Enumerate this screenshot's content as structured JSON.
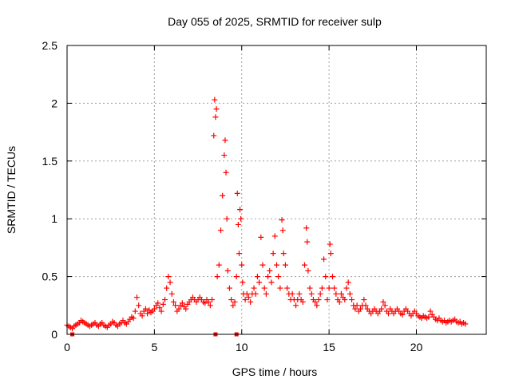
{
  "chart_data": {
    "type": "scatter",
    "title": "Day 055 of 2025, SRMTID for receiver sulp",
    "xlabel": "GPS time / hours",
    "ylabel": "SRMTID / TECUs",
    "xlim": [
      0,
      24
    ],
    "ylim": [
      0,
      2.5
    ],
    "x_ticks": [
      0,
      5,
      10,
      15,
      20
    ],
    "x_tick_labels": [
      "0",
      "5",
      "10",
      "15",
      "20"
    ],
    "y_ticks": [
      0,
      0.5,
      1,
      1.5,
      2,
      2.5
    ],
    "y_tick_labels": [
      "0",
      "0.5",
      "1",
      "1.5",
      "2",
      "2.5"
    ],
    "grid": true,
    "marker": "+",
    "color": "#ff0000",
    "zero_markers_x": [
      0.3,
      8.5,
      9.7
    ],
    "series": [
      {
        "name": "SRMTID",
        "points": [
          [
            0.0,
            0.08
          ],
          [
            0.1,
            0.07
          ],
          [
            0.2,
            0.06
          ],
          [
            0.3,
            0.05
          ],
          [
            0.4,
            0.07
          ],
          [
            0.5,
            0.08
          ],
          [
            0.6,
            0.09
          ],
          [
            0.7,
            0.1
          ],
          [
            0.8,
            0.12
          ],
          [
            0.9,
            0.11
          ],
          [
            1.0,
            0.1
          ],
          [
            1.1,
            0.09
          ],
          [
            1.2,
            0.08
          ],
          [
            1.3,
            0.07
          ],
          [
            1.4,
            0.08
          ],
          [
            1.5,
            0.09
          ],
          [
            1.6,
            0.1
          ],
          [
            1.7,
            0.08
          ],
          [
            1.8,
            0.07
          ],
          [
            1.9,
            0.09
          ],
          [
            2.0,
            0.1
          ],
          [
            2.1,
            0.08
          ],
          [
            2.2,
            0.07
          ],
          [
            2.3,
            0.06
          ],
          [
            2.4,
            0.08
          ],
          [
            2.5,
            0.09
          ],
          [
            2.6,
            0.11
          ],
          [
            2.7,
            0.1
          ],
          [
            2.8,
            0.08
          ],
          [
            2.9,
            0.07
          ],
          [
            3.0,
            0.09
          ],
          [
            3.1,
            0.1
          ],
          [
            3.2,
            0.12
          ],
          [
            3.3,
            0.1
          ],
          [
            3.4,
            0.09
          ],
          [
            3.5,
            0.11
          ],
          [
            3.6,
            0.13
          ],
          [
            3.7,
            0.15
          ],
          [
            3.8,
            0.14
          ],
          [
            3.9,
            0.2
          ],
          [
            4.0,
            0.32
          ],
          [
            4.1,
            0.25
          ],
          [
            4.2,
            0.18
          ],
          [
            4.3,
            0.16
          ],
          [
            4.4,
            0.2
          ],
          [
            4.5,
            0.22
          ],
          [
            4.6,
            0.18
          ],
          [
            4.7,
            0.21
          ],
          [
            4.8,
            0.19
          ],
          [
            4.9,
            0.2
          ],
          [
            5.0,
            0.22
          ],
          [
            5.1,
            0.25
          ],
          [
            5.2,
            0.27
          ],
          [
            5.3,
            0.23
          ],
          [
            5.4,
            0.2
          ],
          [
            5.5,
            0.26
          ],
          [
            5.6,
            0.3
          ],
          [
            5.7,
            0.4
          ],
          [
            5.8,
            0.5
          ],
          [
            5.9,
            0.45
          ],
          [
            6.0,
            0.35
          ],
          [
            6.1,
            0.28
          ],
          [
            6.2,
            0.25
          ],
          [
            6.3,
            0.2
          ],
          [
            6.4,
            0.22
          ],
          [
            6.5,
            0.25
          ],
          [
            6.6,
            0.27
          ],
          [
            6.7,
            0.24
          ],
          [
            6.8,
            0.22
          ],
          [
            6.9,
            0.26
          ],
          [
            7.0,
            0.28
          ],
          [
            7.1,
            0.3
          ],
          [
            7.2,
            0.32
          ],
          [
            7.3,
            0.3
          ],
          [
            7.4,
            0.28
          ],
          [
            7.5,
            0.3
          ],
          [
            7.6,
            0.32
          ],
          [
            7.7,
            0.3
          ],
          [
            7.8,
            0.28
          ],
          [
            7.9,
            0.27
          ],
          [
            8.0,
            0.3
          ],
          [
            8.1,
            0.28
          ],
          [
            8.2,
            0.25
          ],
          [
            8.3,
            0.3
          ],
          [
            8.4,
            1.72
          ],
          [
            8.45,
            2.03
          ],
          [
            8.5,
            1.88
          ],
          [
            8.55,
            1.95
          ],
          [
            8.6,
            0.5
          ],
          [
            8.7,
            0.6
          ],
          [
            8.8,
            0.9
          ],
          [
            8.9,
            1.2
          ],
          [
            9.0,
            1.55
          ],
          [
            9.05,
            1.68
          ],
          [
            9.1,
            1.4
          ],
          [
            9.15,
            1.0
          ],
          [
            9.2,
            0.55
          ],
          [
            9.3,
            0.4
          ],
          [
            9.4,
            0.3
          ],
          [
            9.5,
            0.25
          ],
          [
            9.6,
            0.28
          ],
          [
            9.7,
            0.5
          ],
          [
            9.75,
            1.22
          ],
          [
            9.8,
            0.95
          ],
          [
            9.85,
            0.7
          ],
          [
            9.9,
            1.08
          ],
          [
            9.95,
            1.0
          ],
          [
            10.0,
            0.6
          ],
          [
            10.05,
            0.45
          ],
          [
            10.1,
            0.35
          ],
          [
            10.2,
            0.3
          ],
          [
            10.3,
            0.35
          ],
          [
            10.4,
            0.32
          ],
          [
            10.5,
            0.28
          ],
          [
            10.6,
            0.35
          ],
          [
            10.7,
            0.4
          ],
          [
            10.8,
            0.35
          ],
          [
            10.9,
            0.5
          ],
          [
            11.0,
            0.45
          ],
          [
            11.1,
            0.84
          ],
          [
            11.2,
            0.6
          ],
          [
            11.3,
            0.4
          ],
          [
            11.4,
            0.35
          ],
          [
            11.5,
            0.5
          ],
          [
            11.6,
            0.55
          ],
          [
            11.7,
            0.45
          ],
          [
            11.8,
            0.7
          ],
          [
            11.9,
            0.85
          ],
          [
            12.0,
            0.6
          ],
          [
            12.1,
            0.5
          ],
          [
            12.2,
            0.4
          ],
          [
            12.3,
            0.99
          ],
          [
            12.35,
            0.9
          ],
          [
            12.4,
            0.7
          ],
          [
            12.5,
            0.6
          ],
          [
            12.6,
            0.4
          ],
          [
            12.7,
            0.35
          ],
          [
            12.8,
            0.3
          ],
          [
            12.9,
            0.35
          ],
          [
            13.0,
            0.3
          ],
          [
            13.1,
            0.25
          ],
          [
            13.2,
            0.3
          ],
          [
            13.3,
            0.35
          ],
          [
            13.4,
            0.3
          ],
          [
            13.5,
            0.28
          ],
          [
            13.6,
            0.6
          ],
          [
            13.7,
            0.92
          ],
          [
            13.75,
            0.8
          ],
          [
            13.8,
            0.55
          ],
          [
            13.9,
            0.4
          ],
          [
            14.0,
            0.35
          ],
          [
            14.1,
            0.3
          ],
          [
            14.2,
            0.28
          ],
          [
            14.3,
            0.25
          ],
          [
            14.4,
            0.3
          ],
          [
            14.5,
            0.35
          ],
          [
            14.6,
            0.4
          ],
          [
            14.7,
            0.65
          ],
          [
            14.8,
            0.5
          ],
          [
            14.9,
            0.3
          ],
          [
            15.0,
            0.4
          ],
          [
            15.05,
            0.78
          ],
          [
            15.1,
            0.7
          ],
          [
            15.2,
            0.5
          ],
          [
            15.3,
            0.4
          ],
          [
            15.4,
            0.35
          ],
          [
            15.5,
            0.3
          ],
          [
            15.6,
            0.28
          ],
          [
            15.7,
            0.35
          ],
          [
            15.8,
            0.32
          ],
          [
            15.9,
            0.3
          ],
          [
            16.0,
            0.4
          ],
          [
            16.1,
            0.45
          ],
          [
            16.2,
            0.35
          ],
          [
            16.3,
            0.3
          ],
          [
            16.4,
            0.25
          ],
          [
            16.5,
            0.22
          ],
          [
            16.6,
            0.25
          ],
          [
            16.7,
            0.2
          ],
          [
            16.8,
            0.22
          ],
          [
            16.9,
            0.25
          ],
          [
            17.0,
            0.3
          ],
          [
            17.1,
            0.25
          ],
          [
            17.2,
            0.22
          ],
          [
            17.3,
            0.2
          ],
          [
            17.4,
            0.18
          ],
          [
            17.5,
            0.2
          ],
          [
            17.6,
            0.22
          ],
          [
            17.7,
            0.2
          ],
          [
            17.8,
            0.18
          ],
          [
            17.9,
            0.2
          ],
          [
            18.0,
            0.22
          ],
          [
            18.1,
            0.28
          ],
          [
            18.2,
            0.25
          ],
          [
            18.3,
            0.2
          ],
          [
            18.4,
            0.18
          ],
          [
            18.5,
            0.22
          ],
          [
            18.6,
            0.2
          ],
          [
            18.7,
            0.18
          ],
          [
            18.8,
            0.2
          ],
          [
            18.9,
            0.22
          ],
          [
            19.0,
            0.2
          ],
          [
            19.1,
            0.18
          ],
          [
            19.2,
            0.17
          ],
          [
            19.3,
            0.2
          ],
          [
            19.4,
            0.22
          ],
          [
            19.5,
            0.2
          ],
          [
            19.6,
            0.18
          ],
          [
            19.7,
            0.16
          ],
          [
            19.8,
            0.18
          ],
          [
            19.9,
            0.2
          ],
          [
            20.0,
            0.18
          ],
          [
            20.1,
            0.16
          ],
          [
            20.2,
            0.15
          ],
          [
            20.3,
            0.14
          ],
          [
            20.4,
            0.16
          ],
          [
            20.5,
            0.15
          ],
          [
            20.6,
            0.14
          ],
          [
            20.7,
            0.15
          ],
          [
            20.8,
            0.2
          ],
          [
            20.9,
            0.17
          ],
          [
            21.0,
            0.15
          ],
          [
            21.1,
            0.13
          ],
          [
            21.2,
            0.12
          ],
          [
            21.3,
            0.14
          ],
          [
            21.4,
            0.12
          ],
          [
            21.5,
            0.11
          ],
          [
            21.6,
            0.12
          ],
          [
            21.7,
            0.1
          ],
          [
            21.8,
            0.11
          ],
          [
            21.9,
            0.12
          ],
          [
            22.0,
            0.11
          ],
          [
            22.1,
            0.12
          ],
          [
            22.2,
            0.13
          ],
          [
            22.3,
            0.11
          ],
          [
            22.4,
            0.1
          ],
          [
            22.5,
            0.11
          ],
          [
            22.6,
            0.09
          ],
          [
            22.7,
            0.1
          ],
          [
            22.8,
            0.09
          ]
        ]
      }
    ]
  }
}
